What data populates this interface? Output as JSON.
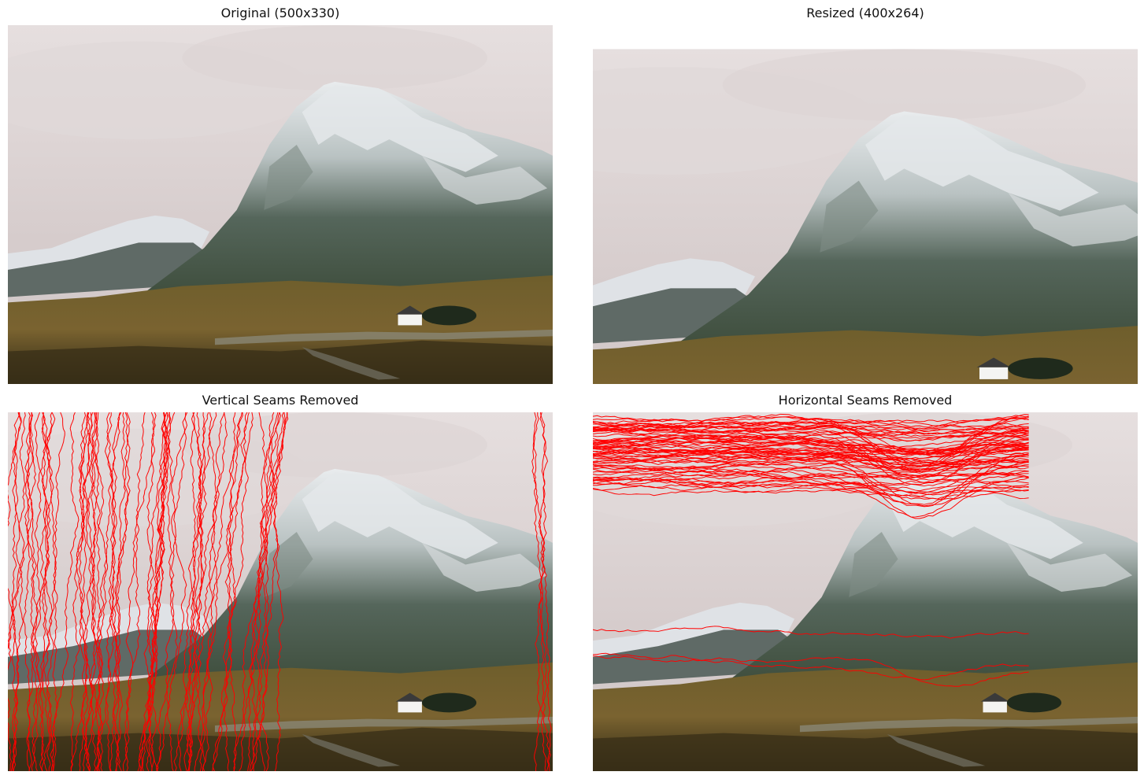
{
  "figure": {
    "panels": [
      {
        "id": "original",
        "title": "Original (500x330)"
      },
      {
        "id": "resized",
        "title": "Resized (400x264)"
      },
      {
        "id": "vertical",
        "title": "Vertical Seams Removed"
      },
      {
        "id": "horizontal",
        "title": "Horizontal Seams Removed"
      }
    ]
  },
  "colors": {
    "seam": "#ff0000",
    "sky": "#d8cfcf",
    "snow": "#e8eaec",
    "rock": "#3f5248",
    "moor": "#6b5a2a",
    "foreground": "#3b3218"
  }
}
